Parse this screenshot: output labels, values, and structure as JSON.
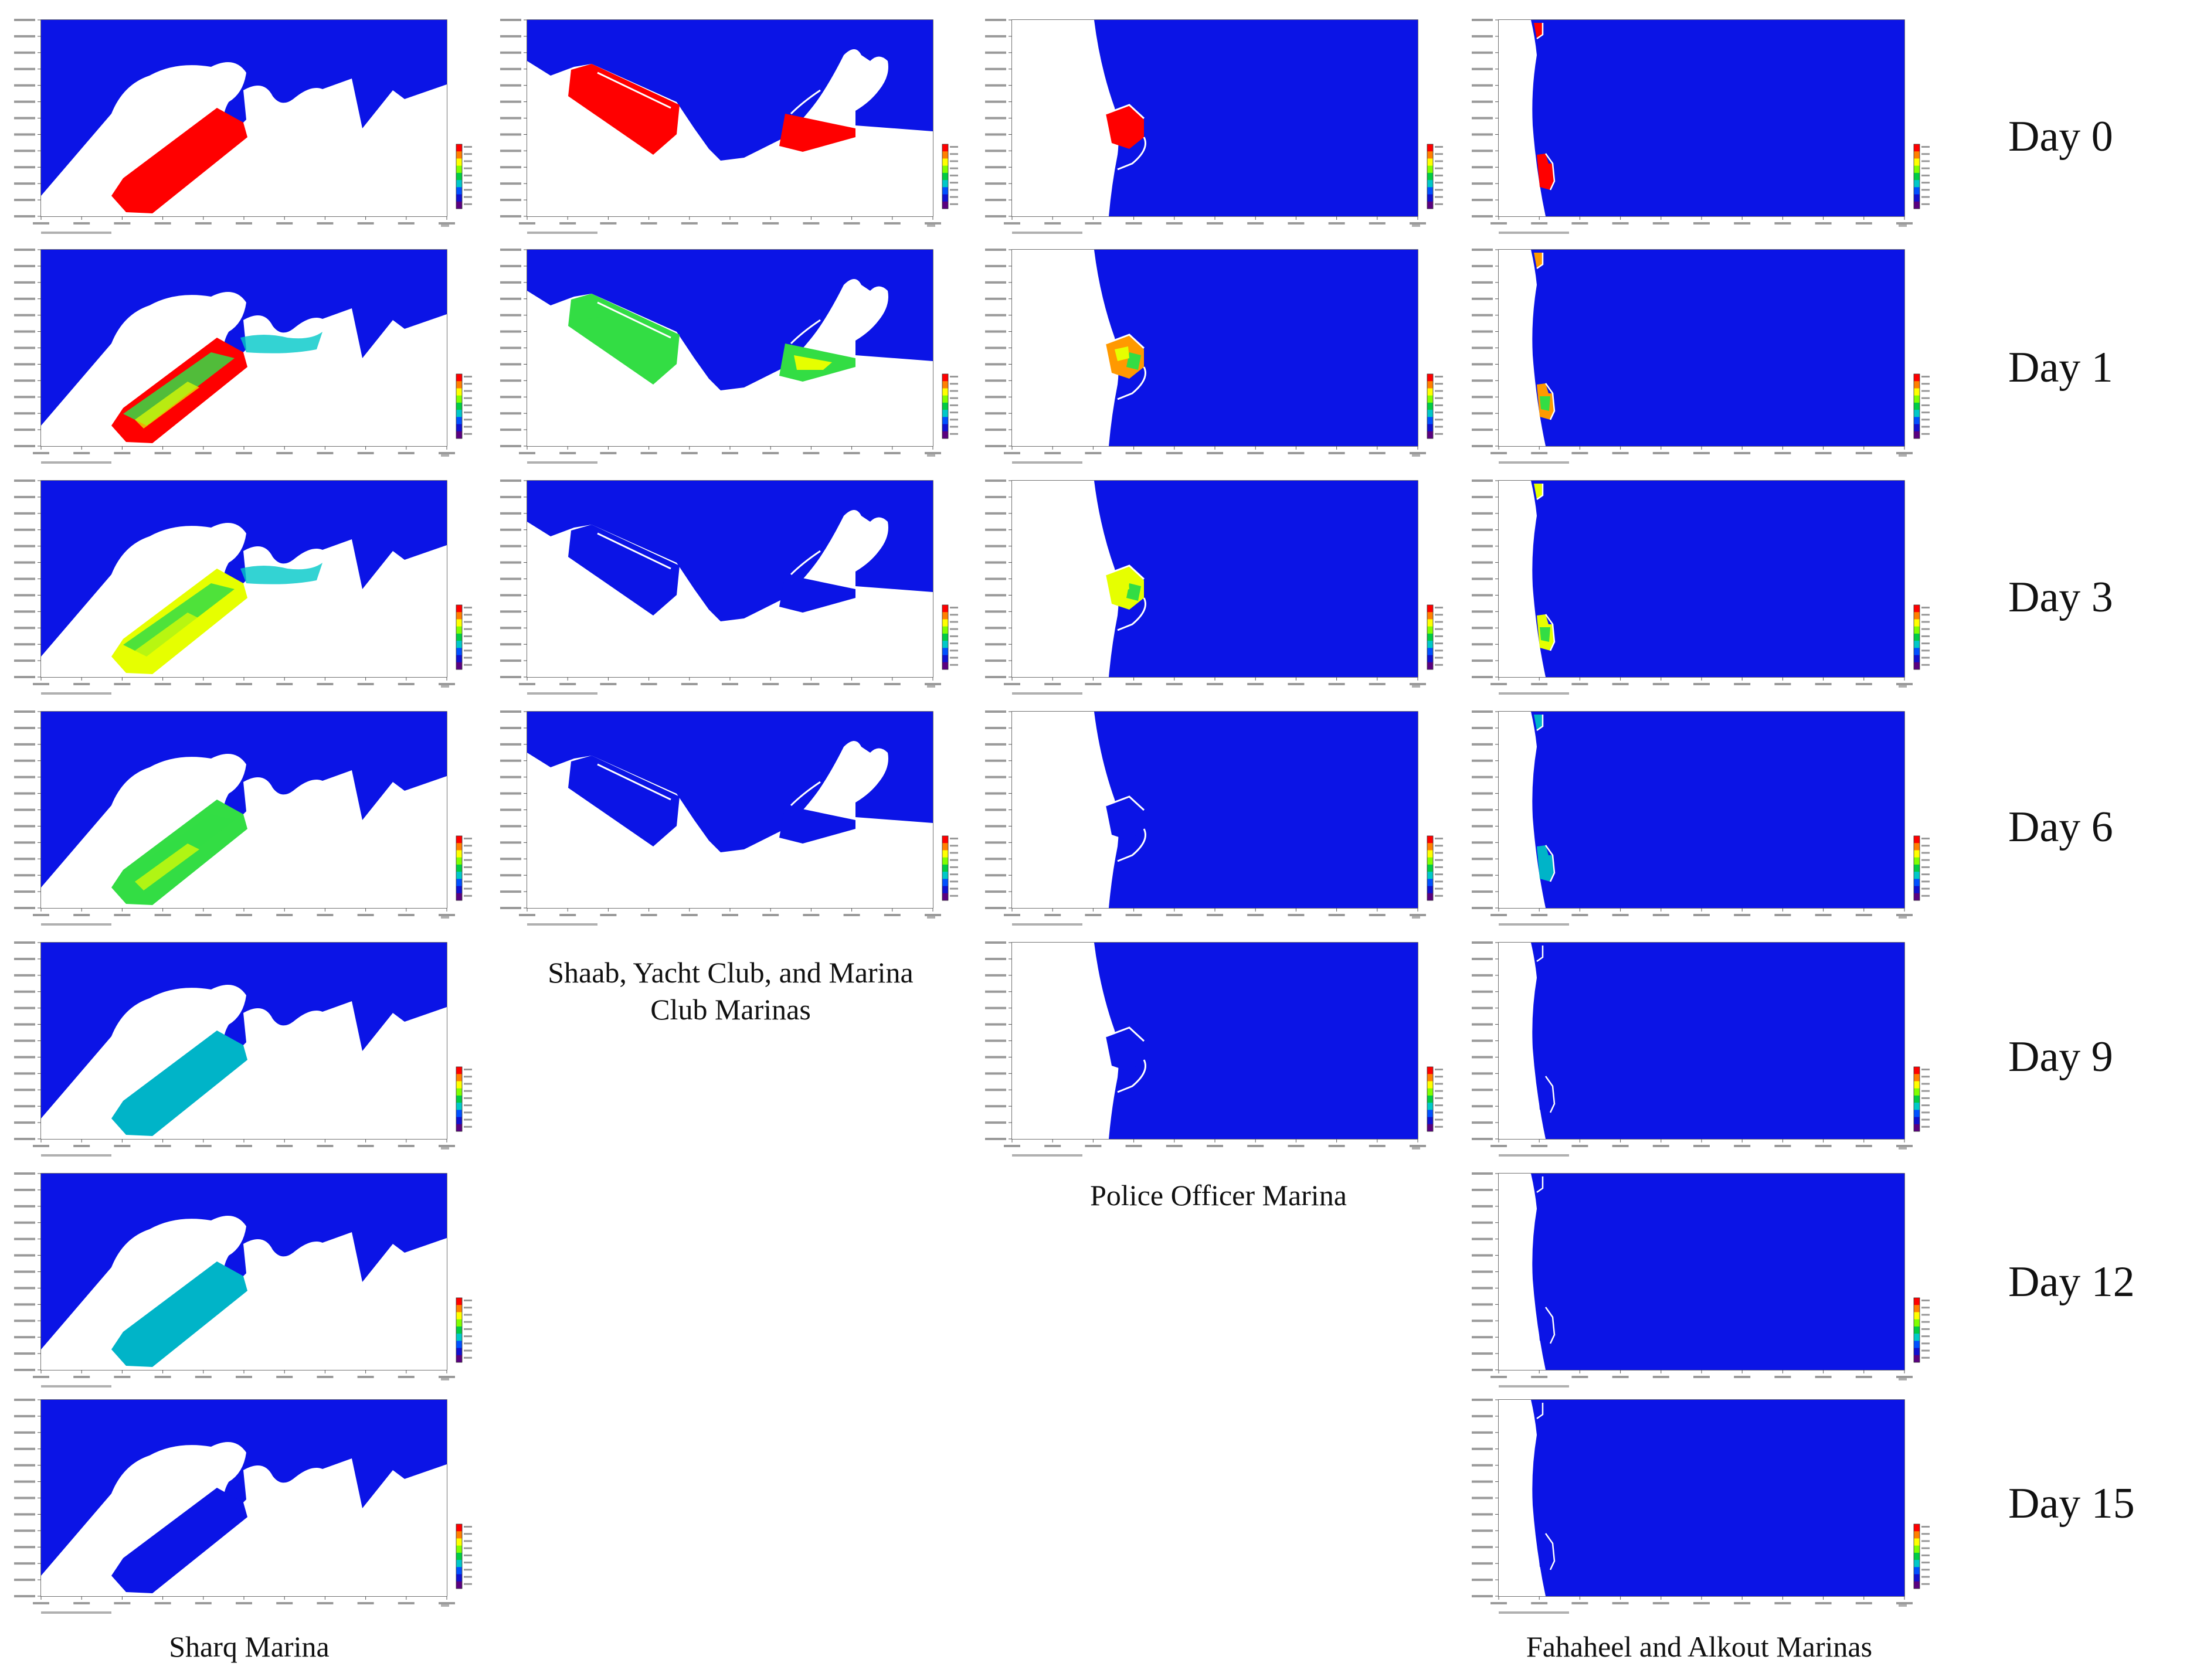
{
  "figure": {
    "day_labels": [
      "Day 0",
      "Day 1",
      "Day 3",
      "Day 6",
      "Day 9",
      "Day 12",
      "Day 15"
    ],
    "columns": [
      {
        "caption_lines": [
          "Sharq Marina"
        ],
        "panel_days": [
          "Day 0",
          "Day 1",
          "Day 3",
          "Day 6",
          "Day 9",
          "Day 12",
          "Day 15"
        ],
        "panel_count": 7
      },
      {
        "caption_lines": [
          "Shaab, Yacht Club, and Marina",
          "Club Marinas"
        ],
        "panel_days": [
          "Day 0",
          "Day 1",
          "Day 3",
          "Day 6"
        ],
        "panel_count": 4
      },
      {
        "caption_lines": [
          "Police Officer Marina"
        ],
        "panel_days": [
          "Day 0",
          "Day 1",
          "Day 3",
          "Day 6",
          "Day 9"
        ],
        "panel_count": 5
      },
      {
        "caption_lines": [
          "Fahaheel and Alkout Marinas"
        ],
        "panel_days": [
          "Day 0",
          "Day 1",
          "Day 3",
          "Day 6",
          "Day 9",
          "Day 12",
          "Day 15"
        ],
        "panel_count": 7
      }
    ],
    "colors": {
      "water_low": "#0b14e6",
      "concentration_high": "#ff0000",
      "land": "#ffffff"
    },
    "colorbar_stops": [
      "#ff0000",
      "#ff8000",
      "#ffff00",
      "#80ff00",
      "#00cc44",
      "#00c8c8",
      "#0050ff",
      "#1010d0",
      "#5a0080"
    ]
  }
}
